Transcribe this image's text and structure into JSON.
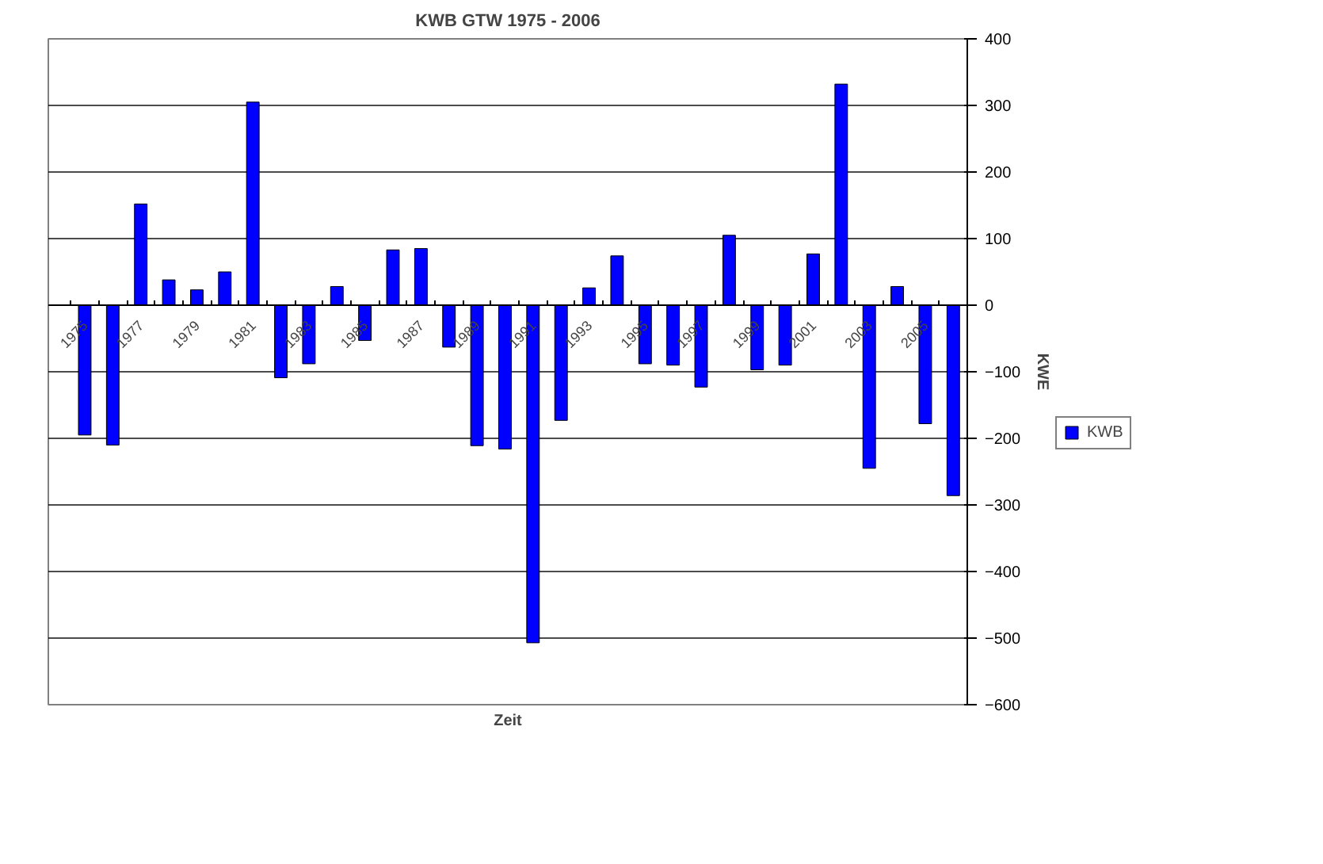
{
  "chart_data": {
    "type": "bar",
    "title": "KWB GTW 1975 - 2006",
    "xlabel": "Zeit",
    "ylabel": "KWE",
    "categories": [
      "1975",
      null,
      "1977",
      null,
      "1979",
      null,
      "1981",
      null,
      "1983",
      null,
      "1985",
      null,
      "1987",
      null,
      "1989",
      null,
      "1991",
      null,
      "1993",
      null,
      "1995",
      null,
      "1997",
      null,
      "1999",
      null,
      "2001",
      null,
      "2003",
      null,
      "2005",
      null
    ],
    "series": [
      {
        "name": "KWB",
        "color": "#0000ff",
        "values": [
          -195,
          -210,
          152,
          38,
          23,
          50,
          305,
          -109,
          -88,
          28,
          -53,
          83,
          85,
          -63,
          -211,
          -216,
          -507,
          -173,
          26,
          74,
          -88,
          -90,
          -123,
          105,
          -97,
          -90,
          77,
          332,
          -245,
          28,
          -178,
          -286
        ]
      }
    ],
    "ylim": [
      -600,
      400
    ],
    "yticks": [
      -600,
      -500,
      -400,
      -300,
      -200,
      -100,
      0,
      100,
      200,
      300,
      400
    ],
    "grid": "y",
    "legend": "right"
  }
}
